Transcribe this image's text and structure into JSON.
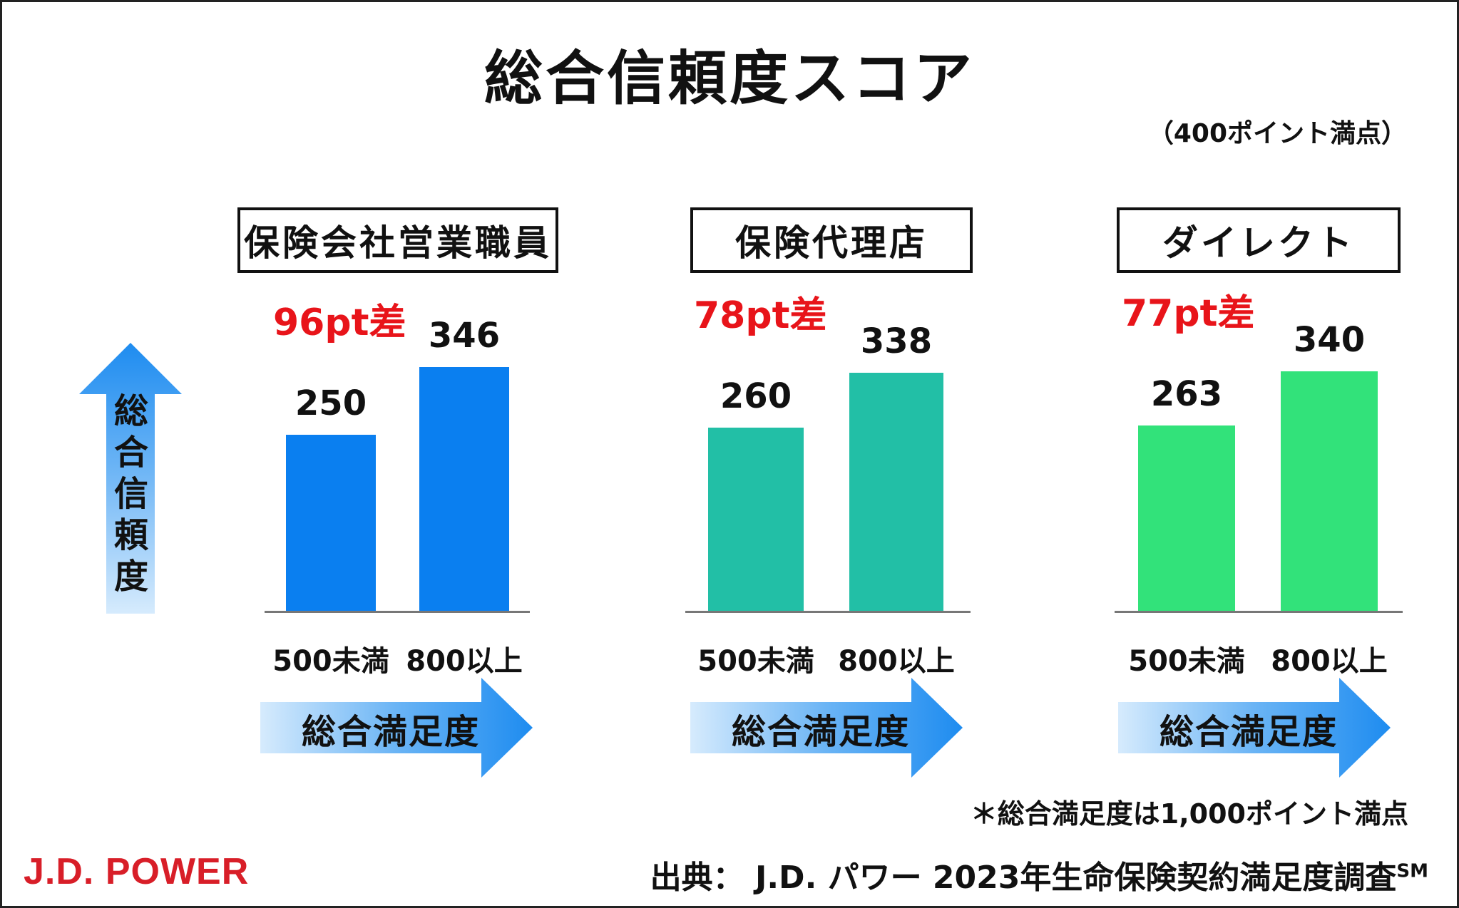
{
  "title": "総合信頼度スコア",
  "full_score_note": "（400ポイント満点）",
  "y_axis_label": "総合信頼度",
  "x_axis_label": "総合満足度",
  "footnote": "＊総合満足度は1,000ポイント満点",
  "source": "出典：  J.D. パワー 2023年生命保険契約満足度調査",
  "source_mark": "SM",
  "logo": "J.D. POWER",
  "colors": {
    "panel1_bar": "#0a7ff0",
    "panel2_bar": "#22bfa6",
    "panel3_bar": "#32e27a",
    "diff_text": "#e8141a",
    "arrow_blue": "#1e8cf0"
  },
  "chart_data": [
    {
      "type": "bar",
      "title": "保険会社営業職員",
      "categories": [
        "500未満",
        "800以上"
      ],
      "values": [
        250,
        346
      ],
      "diff_label": "96pt差",
      "ylabel": "総合信頼度",
      "xlabel": "総合満足度",
      "ylim": [
        0,
        400
      ]
    },
    {
      "type": "bar",
      "title": "保険代理店",
      "categories": [
        "500未満",
        "800以上"
      ],
      "values": [
        260,
        338
      ],
      "diff_label": "78pt差",
      "ylabel": "総合信頼度",
      "xlabel": "総合満足度",
      "ylim": [
        0,
        400
      ]
    },
    {
      "type": "bar",
      "title": "ダイレクト",
      "categories": [
        "500未満",
        "800以上"
      ],
      "values": [
        263,
        340
      ],
      "diff_label": "77pt差",
      "ylabel": "総合信頼度",
      "xlabel": "総合満足度",
      "ylim": [
        0,
        400
      ]
    }
  ]
}
